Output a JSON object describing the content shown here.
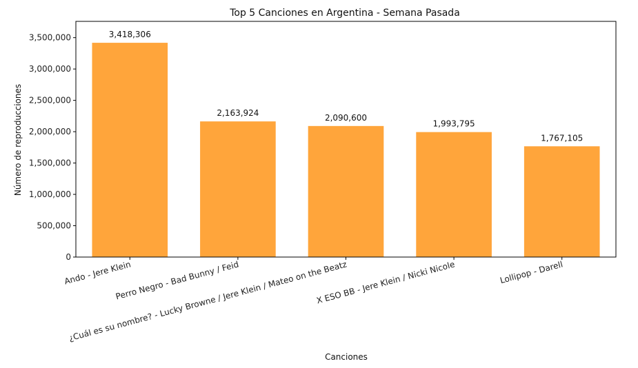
{
  "chart_data": {
    "type": "bar",
    "title": "Top 5 Canciones en Argentina - Semana Pasada",
    "xlabel": "Canciones",
    "ylabel": "Número de reproducciones",
    "categories": [
      "Ando - Jere Klein",
      "Perro Negro - Bad Bunny / Feid",
      "¿Cuál es su nombre? - Lucky Browne / Jere Klein / Mateo on the Beatz",
      "X ESO BB - Jere Klein / Nicki Nicole",
      "Lollipop - Darell"
    ],
    "values": [
      3418306,
      2163924,
      2090600,
      1993795,
      1767105
    ],
    "data_labels": [
      "3,418,306",
      "2,163,924",
      "2,090,600",
      "1,993,795",
      "1,767,105"
    ],
    "yticks": [
      0,
      500000,
      1000000,
      1500000,
      2000000,
      2500000,
      3000000,
      3500000
    ],
    "ytick_labels": [
      "0",
      "500,000",
      "1,000,000",
      "1,500,000",
      "2,000,000",
      "2,500,000",
      "3,000,000",
      "3,500,000"
    ],
    "ylim": [
      0,
      3760000
    ],
    "bar_color": "#ffa53b",
    "grid": false,
    "legend": false
  }
}
